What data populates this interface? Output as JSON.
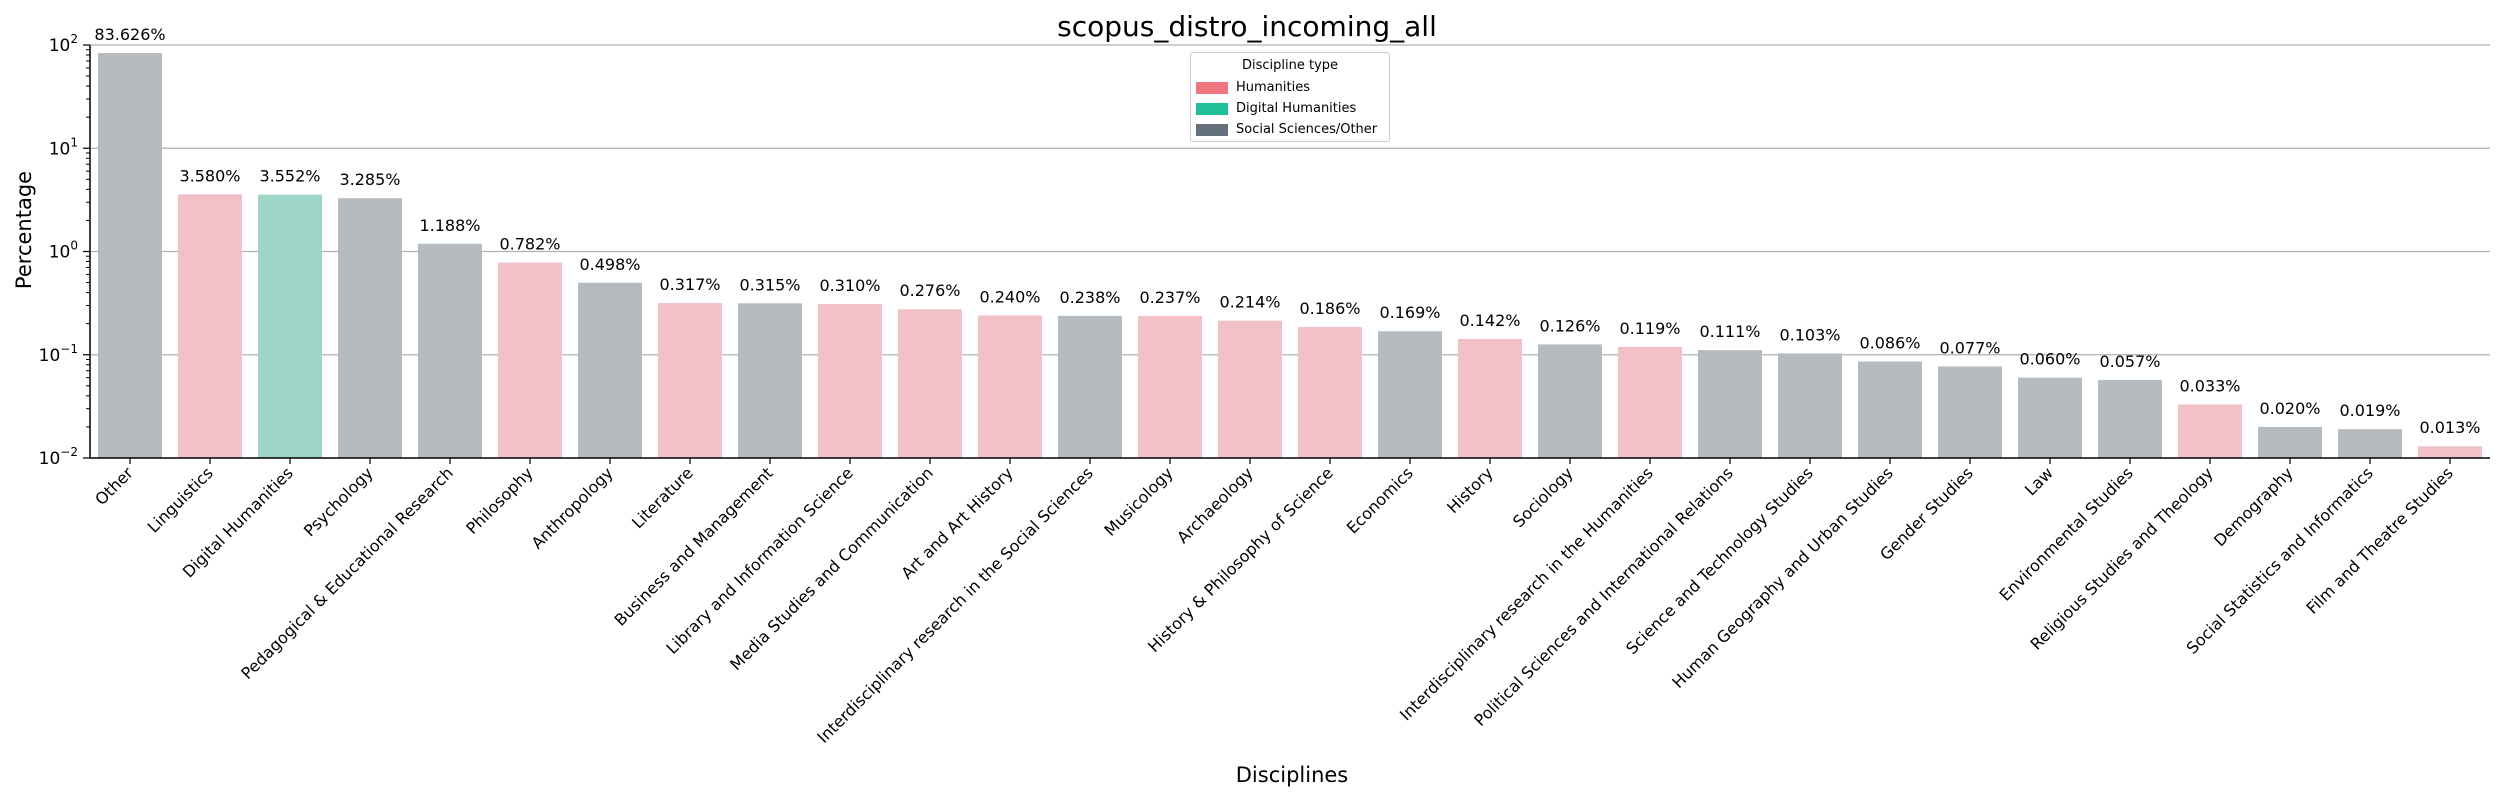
{
  "chart_data": {
    "type": "bar",
    "title": "scopus_distro_incoming_all",
    "xlabel": "Disciplines",
    "ylabel": "Percentage",
    "yscale": "log",
    "ylim": [
      0.01,
      100
    ],
    "y_ticks": [
      {
        "value": 0.01,
        "base": "10",
        "exp": "−2"
      },
      {
        "value": 0.1,
        "base": "10",
        "exp": "−1"
      },
      {
        "value": 1,
        "base": "10",
        "exp": "0"
      },
      {
        "value": 10,
        "base": "10",
        "exp": "1"
      },
      {
        "value": 100,
        "base": "10",
        "exp": "2"
      }
    ],
    "grid": "horizontal",
    "legend": {
      "title": "Discipline type",
      "placement": "top-center",
      "entries": [
        {
          "label": "Humanities",
          "color": "#f0757f"
        },
        {
          "label": "Digital Humanities",
          "color": "#20bf9a"
        },
        {
          "label": "Social Sciences/Other",
          "color": "#65707d"
        }
      ]
    },
    "bar_colors": {
      "Humanities": "#f2c1c7",
      "Digital Humanities": "#9dd5c6",
      "Social Sciences/Other": "#b6bbbf"
    },
    "categories": [
      "Other",
      "Linguistics",
      "Digital Humanities",
      "Psychology",
      "Pedagogical & Educational Research",
      "Philosophy",
      "Anthropology",
      "Literature",
      "Business and Management",
      "Library and Information Science",
      "Media Studies and Communication",
      "Art and Art History",
      "Interdisciplinary research in the Social Sciences",
      "Musicology",
      "Archaeology",
      "History & Philosophy of Science",
      "Economics",
      "History",
      "Sociology",
      "Interdisciplinary research in the Humanities",
      "Political Sciences and International Relations",
      "Science and Technology Studies",
      "Human Geography and Urban Studies",
      "Gender Studies",
      "Law",
      "Environmental Studies",
      "Religious Studies and Theology",
      "Demography",
      "Social Statistics and Informatics",
      "Film and Theatre Studies"
    ],
    "values": [
      83.626,
      3.58,
      3.552,
      3.285,
      1.188,
      0.782,
      0.498,
      0.317,
      0.315,
      0.31,
      0.276,
      0.24,
      0.238,
      0.237,
      0.214,
      0.186,
      0.169,
      0.142,
      0.126,
      0.119,
      0.111,
      0.103,
      0.086,
      0.077,
      0.06,
      0.057,
      0.033,
      0.02,
      0.019,
      0.013
    ],
    "value_labels": [
      "83.626%",
      "3.580%",
      "3.552%",
      "3.285%",
      "1.188%",
      "0.782%",
      "0.498%",
      "0.317%",
      "0.315%",
      "0.310%",
      "0.276%",
      "0.240%",
      "0.238%",
      "0.237%",
      "0.214%",
      "0.186%",
      "0.169%",
      "0.142%",
      "0.126%",
      "0.119%",
      "0.111%",
      "0.103%",
      "0.086%",
      "0.077%",
      "0.060%",
      "0.057%",
      "0.033%",
      "0.020%",
      "0.019%",
      "0.013%"
    ],
    "types": [
      "Social Sciences/Other",
      "Humanities",
      "Digital Humanities",
      "Social Sciences/Other",
      "Social Sciences/Other",
      "Humanities",
      "Social Sciences/Other",
      "Humanities",
      "Social Sciences/Other",
      "Humanities",
      "Humanities",
      "Humanities",
      "Social Sciences/Other",
      "Humanities",
      "Humanities",
      "Humanities",
      "Social Sciences/Other",
      "Humanities",
      "Social Sciences/Other",
      "Humanities",
      "Social Sciences/Other",
      "Social Sciences/Other",
      "Social Sciences/Other",
      "Social Sciences/Other",
      "Social Sciences/Other",
      "Social Sciences/Other",
      "Humanities",
      "Social Sciences/Other",
      "Social Sciences/Other",
      "Humanities"
    ]
  }
}
